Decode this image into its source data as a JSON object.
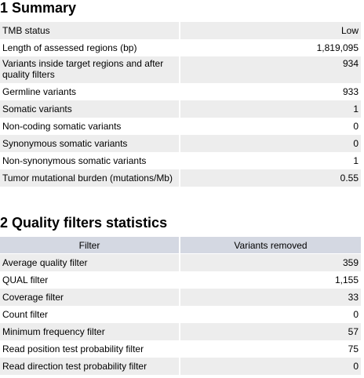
{
  "summary": {
    "title": "1 Summary",
    "rows": [
      {
        "label": "TMB status",
        "value": "Low"
      },
      {
        "label": "Length of assessed regions (bp)",
        "value": "1,819,095"
      },
      {
        "label": "Variants inside target regions and after quality filters",
        "value": "934"
      },
      {
        "label": "Germline variants",
        "value": "933"
      },
      {
        "label": "Somatic variants",
        "value": "1"
      },
      {
        "label": "Non-coding somatic variants",
        "value": "0"
      },
      {
        "label": "Synonymous somatic variants",
        "value": "0"
      },
      {
        "label": "Non-synonymous somatic variants",
        "value": "1"
      },
      {
        "label": "Tumor mutational burden (mutations/Mb)",
        "value": "0.55"
      }
    ]
  },
  "quality": {
    "title": "2 Quality filters statistics",
    "headers": {
      "filter": "Filter",
      "removed": "Variants removed"
    },
    "rows": [
      {
        "label": "Average quality filter",
        "value": "359"
      },
      {
        "label": "QUAL filter",
        "value": "1,155"
      },
      {
        "label": "Coverage filter",
        "value": "33"
      },
      {
        "label": "Count filter",
        "value": "0"
      },
      {
        "label": "Minimum frequency filter",
        "value": "57"
      },
      {
        "label": "Read position test probability filter",
        "value": "75"
      },
      {
        "label": "Read direction test probability filter",
        "value": "0"
      }
    ]
  }
}
